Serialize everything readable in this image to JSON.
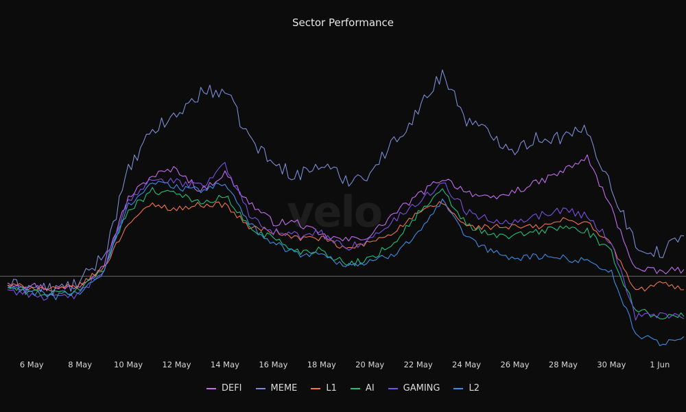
{
  "chart_data": {
    "type": "line",
    "title": "Sector Performance",
    "watermark": "velo",
    "x_ticks": [
      "6 May",
      "8 May",
      "10 May",
      "12 May",
      "14 May",
      "16 May",
      "18 May",
      "20 May",
      "22 May",
      "24 May",
      "26 May",
      "28 May",
      "30 May",
      "1 Jun"
    ],
    "x_range": [
      "5 May",
      "2 Jun"
    ],
    "y_range": [
      -30,
      105
    ],
    "baseline": 0,
    "grid": false,
    "legend_position": "bottom-center",
    "x": [
      "5 May",
      "6 May",
      "7 May",
      "8 May",
      "9 May",
      "10 May",
      "11 May",
      "12 May",
      "13 May",
      "14 May",
      "15 May",
      "16 May",
      "17 May",
      "18 May",
      "19 May",
      "20 May",
      "21 May",
      "22 May",
      "23 May",
      "24 May",
      "25 May",
      "26 May",
      "27 May",
      "28 May",
      "29 May",
      "30 May",
      "31 May",
      "1 Jun",
      "2 Jun"
    ],
    "series": [
      {
        "name": "DEFI",
        "color": "#c46ef0",
        "values": [
          -3,
          -4,
          -6,
          -4,
          6,
          35,
          45,
          48,
          38,
          46,
          33,
          24,
          24,
          18,
          16,
          18,
          28,
          36,
          44,
          38,
          34,
          38,
          42,
          47,
          53,
          30,
          3,
          2,
          3
        ]
      },
      {
        "name": "MEME",
        "color": "#7d8ed6",
        "values": [
          -4,
          -5,
          -6,
          -3,
          10,
          47,
          65,
          72,
          82,
          83,
          62,
          50,
          45,
          50,
          43,
          46,
          60,
          74,
          91,
          70,
          63,
          57,
          62,
          62,
          65,
          40,
          14,
          10,
          18
        ]
      },
      {
        "name": "L1",
        "color": "#f0764f",
        "values": [
          -4,
          -5,
          -6,
          -4,
          4,
          24,
          32,
          30,
          32,
          32,
          22,
          20,
          17,
          17,
          12,
          15,
          20,
          28,
          33,
          22,
          22,
          22,
          22,
          25,
          24,
          14,
          -7,
          -3,
          -6
        ]
      },
      {
        "name": "AI",
        "color": "#22c07a",
        "values": [
          -5,
          -7,
          -8,
          -6,
          4,
          30,
          38,
          38,
          32,
          36,
          22,
          17,
          11,
          12,
          5,
          8,
          15,
          28,
          38,
          23,
          18,
          18,
          20,
          22,
          20,
          10,
          -15,
          -18,
          -18
        ]
      },
      {
        "name": "GAMING",
        "color": "#7b52e0",
        "values": [
          -6,
          -8,
          -10,
          -8,
          3,
          34,
          44,
          42,
          40,
          50,
          28,
          20,
          18,
          19,
          13,
          16,
          25,
          33,
          42,
          29,
          25,
          25,
          27,
          30,
          27,
          15,
          -18,
          -17,
          -19
        ]
      },
      {
        "name": "L2",
        "color": "#3e8fe6",
        "values": [
          -5,
          -7,
          -9,
          -7,
          2,
          32,
          42,
          40,
          38,
          42,
          23,
          15,
          10,
          10,
          5,
          6,
          10,
          20,
          33,
          17,
          11,
          8,
          9,
          8,
          7,
          2,
          -26,
          -30,
          -27
        ]
      }
    ]
  }
}
